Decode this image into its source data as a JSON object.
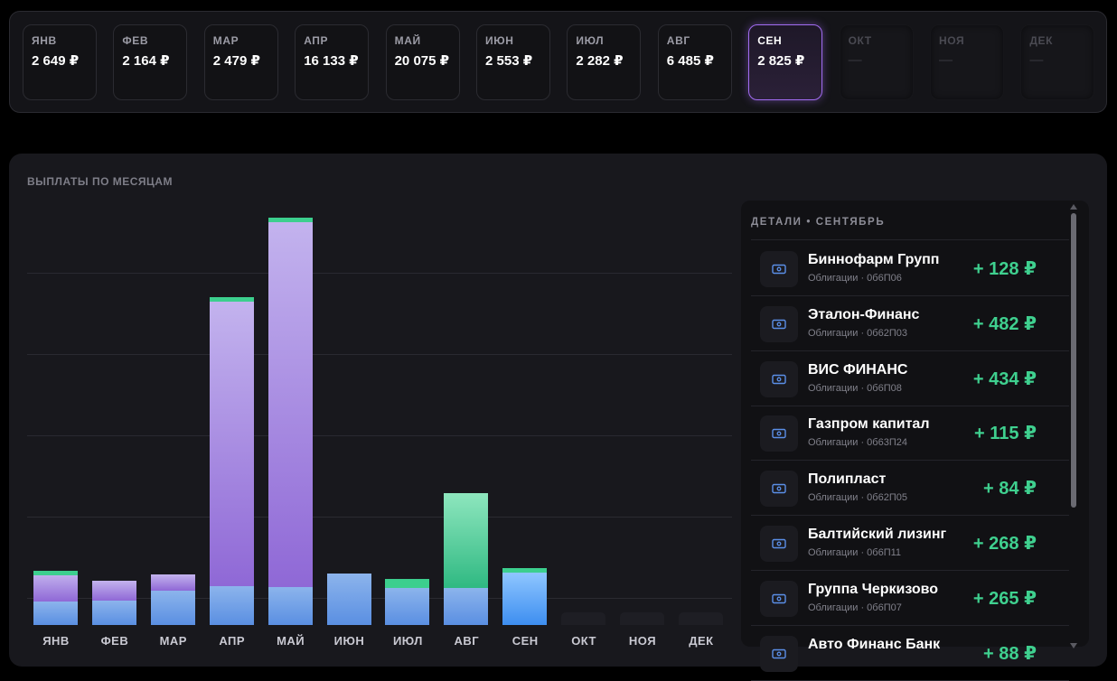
{
  "months": [
    {
      "name": "ЯНВ",
      "amount": "2 649 ₽"
    },
    {
      "name": "ФЕВ",
      "amount": "2 164 ₽"
    },
    {
      "name": "МАР",
      "amount": "2 479 ₽"
    },
    {
      "name": "АПР",
      "amount": "16 133 ₽"
    },
    {
      "name": "МАЙ",
      "amount": "20 075 ₽"
    },
    {
      "name": "ИЮН",
      "amount": "2 553 ₽"
    },
    {
      "name": "ИЮЛ",
      "amount": "2 282 ₽"
    },
    {
      "name": "АВГ",
      "amount": "6 485 ₽"
    },
    {
      "name": "СЕН",
      "amount": "2 825 ₽",
      "selected": true
    },
    {
      "name": "ОКТ",
      "amount": "—",
      "empty": true
    },
    {
      "name": "НОЯ",
      "amount": "—",
      "empty": true
    },
    {
      "name": "ДЕК",
      "amount": "—",
      "empty": true
    }
  ],
  "chart": {
    "title": "ВЫПЛАТЫ ПО МЕСЯЦАМ"
  },
  "chart_data": {
    "type": "bar",
    "stacked": true,
    "categories": [
      "ЯНВ",
      "ФЕВ",
      "МАР",
      "АПР",
      "МАЙ",
      "ИЮН",
      "ИЮЛ",
      "АВГ",
      "СЕН",
      "ОКТ",
      "НОЯ",
      "ДЕК"
    ],
    "totals": [
      2649,
      2164,
      2479,
      16133,
      20075,
      2553,
      2282,
      6485,
      2825,
      0,
      0,
      0
    ],
    "series": [
      {
        "values": [
          1170,
          1190,
          1680,
          1920,
          1880,
          2553,
          1830,
          1830,
          2600,
          0,
          0,
          0
        ]
      },
      {
        "values": [
          1380,
          974,
          799,
          14013,
          17995,
          0,
          0,
          0,
          0,
          0,
          0,
          0
        ]
      },
      {
        "values": [
          99,
          0,
          0,
          200,
          200,
          0,
          452,
          4655,
          225,
          0,
          0,
          0
        ]
      }
    ],
    "colors": {
      "base": "#5a8fe2",
      "bonds": "#8f68d6",
      "green": "#3ccf8e",
      "selected": "#3d8ef0"
    },
    "selected": "СЕН",
    "ylim": [
      0,
      21000
    ],
    "grid": true
  },
  "details": {
    "title": "ДЕТАЛИ • СЕНТЯБРЬ",
    "items": [
      {
        "name": "Биннофарм Групп",
        "sub": "Облигации · 0б6П06",
        "amount": "+ 128 ₽",
        "icon": "banknote-icon"
      },
      {
        "name": "Эталон-Финанс",
        "sub": "Облигации · 0б62П03",
        "amount": "+ 482 ₽",
        "icon": "banknote-icon"
      },
      {
        "name": "ВИС ФИНАНС",
        "sub": "Облигации · 0б6П08",
        "amount": "+ 434 ₽",
        "icon": "banknote-icon"
      },
      {
        "name": "Газпром капитал",
        "sub": "Облигации · 0б63П24",
        "amount": "+ 115 ₽",
        "icon": "banknote-icon"
      },
      {
        "name": "Полипласт",
        "sub": "Облигации · 0б62П05",
        "amount": "+ 84 ₽",
        "icon": "banknote-icon"
      },
      {
        "name": "Балтийский лизинг",
        "sub": "Облигации · 0б6П11",
        "amount": "+ 268 ₽",
        "icon": "banknote-icon"
      },
      {
        "name": "Группа Черкизово",
        "sub": "Облигации · 0б6П07",
        "amount": "+ 265 ₽",
        "icon": "banknote-icon"
      },
      {
        "name": "Авто Финанс Банк",
        "sub": "",
        "amount": "+ 88 ₽",
        "icon": "banknote-icon"
      }
    ]
  },
  "colors": {
    "accent": "#a26cf2",
    "positive": "#3fd08f"
  }
}
